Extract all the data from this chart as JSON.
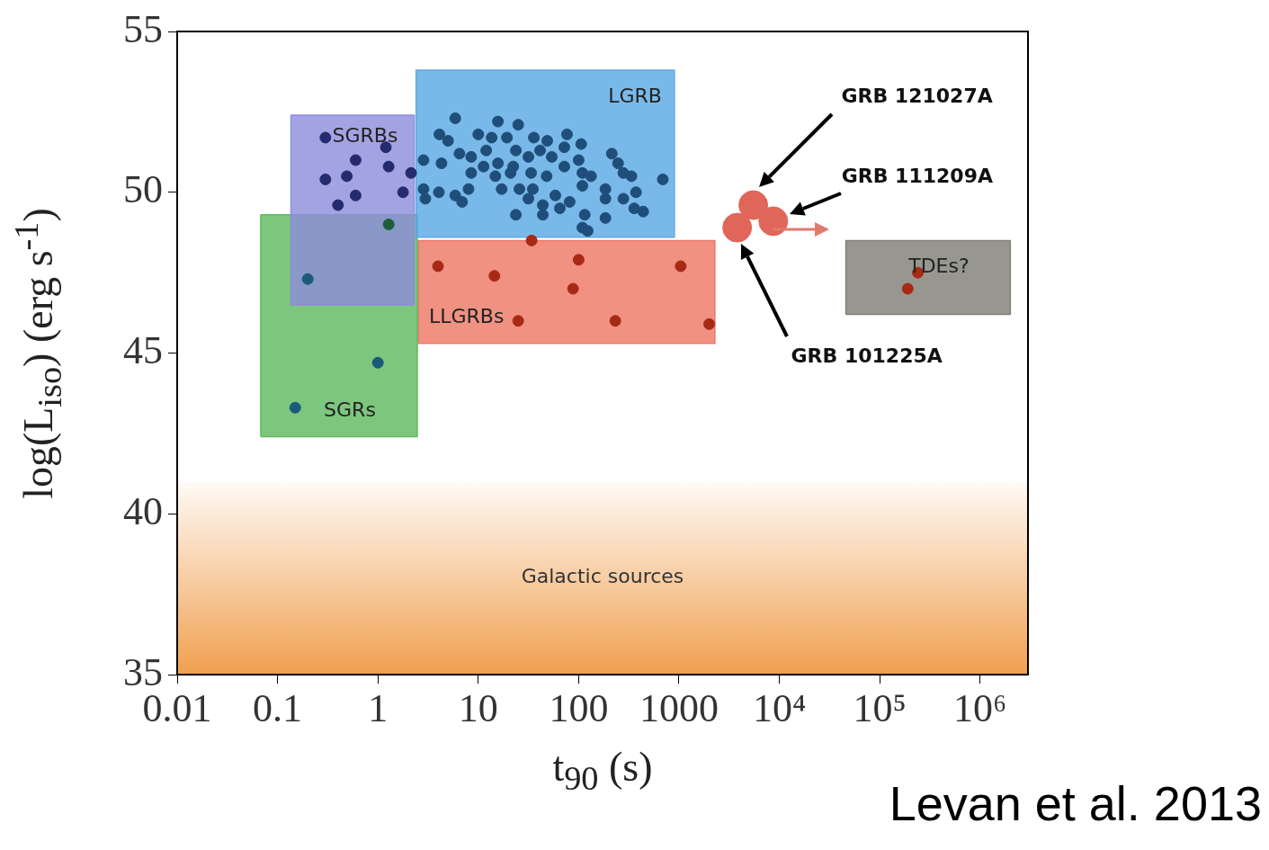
{
  "chart_data": {
    "type": "scatter",
    "xlabel": "t$_{90}$ (s)",
    "ylabel": "log(L$_{iso}$) (erg s$^{-1}$)",
    "log": "x",
    "xlim": [
      0.01,
      3000000
    ],
    "ylim": [
      35,
      55
    ],
    "xticks": [
      0.01,
      0.1,
      1,
      10,
      100,
      1000,
      {
        "value": 10000,
        "label": "10⁴"
      },
      {
        "value": 100000,
        "label": "10⁵"
      },
      {
        "value": 1000000,
        "label": "10⁶"
      }
    ],
    "yticks": [
      35,
      40,
      45,
      50,
      55
    ],
    "bands": [
      {
        "axis": "y",
        "from": 35,
        "to": 41,
        "label": "Galactic sources",
        "color": "#f0a050"
      }
    ],
    "series": [
      {
        "type": "area",
        "name": "SGRBs",
        "color": "#8c8cdc",
        "x": [
          0.136,
          0.136,
          2.3,
          2.3,
          0.136
        ],
        "values": [
          46.5,
          52.4,
          52.4,
          46.5,
          46.5
        ]
      },
      {
        "type": "area",
        "name": "LGRB",
        "color": "#58a8e4",
        "x": [
          2.4,
          2.4,
          900,
          900,
          2.4
        ],
        "values": [
          48.6,
          53.8,
          53.8,
          48.6,
          48.6
        ]
      },
      {
        "type": "area",
        "name": "SGRs",
        "color": "#5cb85c",
        "x": [
          0.068,
          0.068,
          2.47,
          2.47,
          0.068
        ],
        "values": [
          42.4,
          49.3,
          49.3,
          42.4,
          42.4
        ]
      },
      {
        "type": "area",
        "name": "LLGRBs",
        "color": "#ec7563",
        "x": [
          2.52,
          2.52,
          2280,
          2280,
          2.52
        ],
        "values": [
          45.3,
          48.5,
          48.5,
          45.3,
          45.3
        ]
      },
      {
        "type": "area",
        "name": "TDEs?",
        "color": "#7d7d74",
        "x": [
          46000,
          46000,
          2000000,
          2000000,
          46000
        ],
        "values": [
          46.2,
          48.5,
          48.5,
          46.2,
          46.2
        ]
      },
      {
        "type": "scatter",
        "marker": "circle",
        "color": "#262a6e",
        "x": [
          0.3,
          0.6,
          1.28,
          1.2,
          0.3,
          0.49,
          0.6,
          0.4,
          1.78,
          2.14
        ],
        "values": [
          51.7,
          51.0,
          50.8,
          51.4,
          50.4,
          50.5,
          49.9,
          49.6,
          50.0,
          50.6
        ]
      },
      {
        "type": "scatter",
        "marker": "circle",
        "color": "#1f4e7a",
        "x": [
          5.9,
          4.1,
          5.0,
          15.7,
          25,
          10,
          13.6,
          19.3,
          35.8,
          48.7,
          76.6,
          106,
          2.85,
          4.3,
          6.5,
          8.5,
          12,
          11.3,
          15.7,
          23.7,
          22.3,
          31.6,
          41.3,
          33.6,
          54,
          72,
          72,
          100,
          109,
          133,
          214,
          247,
          279,
          336,
          690,
          8.5,
          14.8,
          2.85,
          2.97,
          4.05,
          5.9,
          6.9,
          8,
          17.1,
          25.7,
          35,
          31.6,
          44,
          58.6,
          65,
          81.4,
          23.7,
          44,
          115,
          109,
          185,
          185,
          185,
          279,
          373,
          358,
          440,
          123,
          21,
          48,
          109
        ],
        "values": [
          52.3,
          51.8,
          51.6,
          52.2,
          52.1,
          51.8,
          51.7,
          51.7,
          51.7,
          51.6,
          51.8,
          51.5,
          51.0,
          50.9,
          51.2,
          51.1,
          51.3,
          50.8,
          50.9,
          51.3,
          50.8,
          51.1,
          51.3,
          50.6,
          51.1,
          51.4,
          50.8,
          51.0,
          50.6,
          50.5,
          51.2,
          50.9,
          50.6,
          50.5,
          50.4,
          50.6,
          50.5,
          50.1,
          49.8,
          50.0,
          49.9,
          49.7,
          50.1,
          50.1,
          50.1,
          50.1,
          49.8,
          49.6,
          49.9,
          49.5,
          49.7,
          49.3,
          49.3,
          49.3,
          48.9,
          49.8,
          49.2,
          50.1,
          49.8,
          50.0,
          49.5,
          49.4,
          48.8,
          50.6,
          50.5,
          50.2
        ]
      },
      {
        "type": "scatter",
        "marker": "circle",
        "colors": [
          "#1a5a7a",
          "#1a5a7a",
          "#1a5a7a",
          "#1d5e3a"
        ],
        "x": [
          0.2,
          1.0,
          0.15,
          1.28
        ],
        "values": [
          47.3,
          44.7,
          43.3,
          49.0
        ]
      },
      {
        "type": "scatter",
        "marker": "circle",
        "color": "#a82a14",
        "x": [
          3.97,
          14.5,
          25,
          34,
          88,
          100,
          232,
          1040,
          2000,
          190000,
          240000
        ],
        "values": [
          47.7,
          47.4,
          46.0,
          48.5,
          47.0,
          47.9,
          46.0,
          47.7,
          45.9,
          47.0,
          47.5
        ]
      },
      {
        "type": "scatter",
        "marker": "circle",
        "color": "#e0665a",
        "x": [
          5500,
          8700,
          3800
        ],
        "values": [
          49.6,
          49.1,
          48.9
        ]
      }
    ],
    "annotations": [
      "GRB 121027A",
      "GRB 111209A",
      "GRB 101225A",
      "Levan et al. 2013"
    ]
  }
}
